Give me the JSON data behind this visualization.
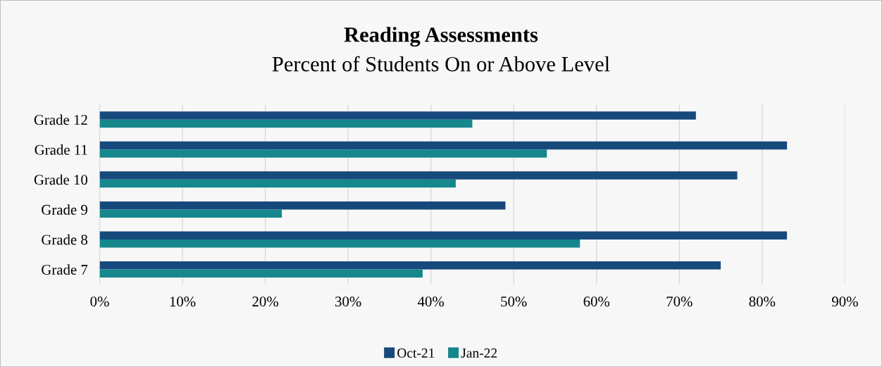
{
  "chart_data": {
    "type": "bar",
    "orientation": "horizontal",
    "title": "Reading Assessments",
    "subtitle": "Percent of Students On or Above Level",
    "categories": [
      "Grade 12",
      "Grade 11",
      "Grade 10",
      "Grade 9",
      "Grade 8",
      "Grade 7"
    ],
    "series": [
      {
        "name": "Oct-21",
        "color": "#174a7c",
        "values": [
          72,
          83,
          77,
          49,
          83,
          75
        ]
      },
      {
        "name": "Jan-22",
        "color": "#15878d",
        "values": [
          45,
          54,
          43,
          22,
          58,
          39
        ]
      }
    ],
    "xlim": [
      0,
      90
    ],
    "xticks": [
      {
        "value": 0,
        "label": "0%"
      },
      {
        "value": 10,
        "label": "10%"
      },
      {
        "value": 20,
        "label": "20%"
      },
      {
        "value": 30,
        "label": "30%"
      },
      {
        "value": 40,
        "label": "40%"
      },
      {
        "value": 50,
        "label": "50%"
      },
      {
        "value": 60,
        "label": "60%"
      },
      {
        "value": 70,
        "label": "70%"
      },
      {
        "value": 80,
        "label": "80%"
      },
      {
        "value": 90,
        "label": "90%"
      }
    ],
    "grid": "x",
    "legend": "bottom"
  }
}
